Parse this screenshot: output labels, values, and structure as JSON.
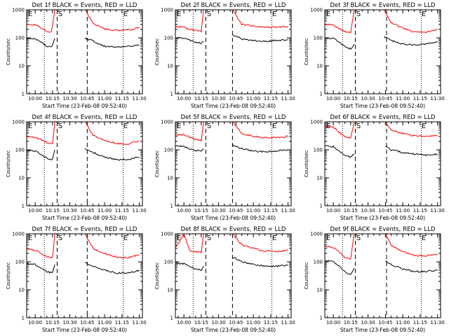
{
  "panel_order": [
    "1f",
    "2f",
    "3f",
    "4f",
    "5f",
    "6f",
    "7f",
    "8f",
    "9f"
  ],
  "colors": {
    "events": "#000000",
    "lld": "#ff0000",
    "axes": "#000000"
  },
  "chart_data": [
    {
      "type": "line",
      "detector": "1f",
      "title": "Det 1f BLACK = Events, RED = LLD",
      "xlabel": "Start Time (23-Feb-08 09:52:40)",
      "ylabel": "Counts/sec",
      "xlim": [
        "09:52:40",
        "11:32:40"
      ],
      "ylim": [
        1,
        1000
      ],
      "yscale": "log",
      "xticks": [
        "10:00",
        "10:15",
        "10:30",
        "10:45",
        "11:00",
        "11:15",
        "11:30"
      ],
      "yticks": [
        "1",
        "10",
        "100",
        "1000"
      ],
      "markers": {
        "E1": "09:52:40",
        "S": "10:18:40",
        "E2": "11:15:00"
      },
      "dotted_lines": [
        "10:08",
        "11:16"
      ],
      "dashed_lines": [
        "10:19",
        "10:45"
      ],
      "gap": [
        "10:19",
        "10:43"
      ],
      "series": [
        {
          "name": "Events",
          "x": [
            "09:53",
            "10:00",
            "10:05",
            "10:10",
            "10:14",
            "10:17",
            "10:43",
            "10:50",
            "10:55",
            "11:00",
            "11:05",
            "11:10",
            "11:15",
            "11:20",
            "11:25",
            "11:30"
          ],
          "values": [
            95,
            90,
            70,
            50,
            45,
            95,
            95,
            80,
            60,
            50,
            47,
            48,
            48,
            50,
            52,
            55
          ]
        },
        {
          "name": "LLD",
          "x": [
            "09:53",
            "10:00",
            "10:05",
            "10:10",
            "10:14",
            "10:17",
            "10:43",
            "10:50",
            "10:55",
            "11:00",
            "11:05",
            "11:10",
            "11:15",
            "11:20",
            "11:25",
            "11:30"
          ],
          "values": [
            300,
            290,
            230,
            170,
            160,
            1000,
            1000,
            320,
            260,
            210,
            190,
            185,
            185,
            190,
            205,
            240
          ]
        }
      ]
    },
    {
      "type": "line",
      "detector": "2f",
      "title": "Det 2f BLACK = Events, RED = LLD",
      "xlabel": "Start Time (23-Feb-08 09:52:40)",
      "ylabel": "Counts/sec",
      "xlim": [
        "09:52:40",
        "11:32:40"
      ],
      "ylim": [
        1,
        1000
      ],
      "yscale": "log",
      "xticks": [
        "10:00",
        "10:15",
        "10:30",
        "10:45",
        "11:00",
        "11:15",
        "11:30"
      ],
      "yticks": [
        "1",
        "10",
        "100",
        "1000"
      ],
      "markers": {
        "E1": "09:52:40",
        "S": "10:18:40",
        "E2": "11:15:00"
      },
      "dotted_lines": [
        "10:08",
        "11:16"
      ],
      "dashed_lines": [
        "10:19",
        "10:42"
      ],
      "gap": [
        "10:19",
        "10:42"
      ],
      "series": [
        {
          "name": "Events",
          "x": [
            "09:53",
            "10:00",
            "10:05",
            "10:10",
            "10:15",
            "10:17",
            "10:42",
            "10:50",
            "11:00",
            "11:10",
            "11:20",
            "11:30"
          ],
          "values": [
            100,
            95,
            80,
            70,
            65,
            75,
            130,
            90,
            80,
            75,
            80,
            85
          ]
        },
        {
          "name": "LLD",
          "x": [
            "09:53",
            "10:00",
            "10:05",
            "10:10",
            "10:15",
            "10:17",
            "10:42",
            "10:50",
            "11:00",
            "11:10",
            "11:20",
            "11:30"
          ],
          "values": [
            250,
            240,
            200,
            180,
            170,
            1000,
            1000,
            300,
            270,
            240,
            240,
            250
          ]
        }
      ]
    },
    {
      "type": "line",
      "detector": "3f",
      "title": "Det 3f BLACK = Events, RED = LLD",
      "xlabel": "Start Time (23-Feb-08 09:52:40)",
      "ylabel": "Counts/sec",
      "xlim": [
        "09:52:40",
        "11:32:40"
      ],
      "ylim": [
        1,
        1000
      ],
      "yscale": "log",
      "xticks": [
        "10:00",
        "10:15",
        "10:30",
        "10:45",
        "11:00",
        "11:15",
        "11:30"
      ],
      "yticks": [
        "1",
        "10",
        "100",
        "1000"
      ],
      "markers": {
        "E1": "09:52:40",
        "S": "10:18:40",
        "E2": "11:15:00"
      },
      "dotted_lines": [
        "10:08",
        "11:16"
      ],
      "dashed_lines": [
        "10:19",
        "10:46"
      ],
      "gap": [
        "10:19",
        "10:44"
      ],
      "series": [
        {
          "name": "Events",
          "x": [
            "09:53",
            "10:00",
            "10:05",
            "10:10",
            "10:15",
            "10:18",
            "10:44",
            "10:50",
            "11:00",
            "11:10",
            "11:20",
            "11:30"
          ],
          "values": [
            100,
            95,
            70,
            50,
            40,
            60,
            110,
            80,
            60,
            55,
            60,
            70
          ]
        },
        {
          "name": "LLD",
          "x": [
            "09:53",
            "10:00",
            "10:05",
            "10:10",
            "10:15",
            "10:18",
            "10:44",
            "10:50",
            "11:00",
            "11:10",
            "11:20",
            "11:30"
          ],
          "values": [
            300,
            280,
            220,
            170,
            150,
            1000,
            1000,
            350,
            220,
            160,
            160,
            200
          ]
        }
      ]
    },
    {
      "type": "line",
      "detector": "4f",
      "title": "Det 4f BLACK = Events, RED = LLD",
      "xlabel": "Start Time (23-Feb-08 09:52:40)",
      "ylabel": "Counts/sec",
      "xlim": [
        "09:52:40",
        "11:32:40"
      ],
      "ylim": [
        1,
        1000
      ],
      "yscale": "log",
      "xticks": [
        "10:00",
        "10:15",
        "10:30",
        "10:45",
        "11:00",
        "11:15",
        "11:30"
      ],
      "yticks": [
        "1",
        "10",
        "100",
        "1000"
      ],
      "markers": {
        "E1": "09:52:40",
        "S": "10:18:40",
        "E2": "11:15:00"
      },
      "dotted_lines": [
        "10:08",
        "11:16"
      ],
      "dashed_lines": [
        "10:19",
        "10:45"
      ],
      "gap": [
        "10:19",
        "10:43"
      ],
      "series": [
        {
          "name": "Events",
          "x": [
            "09:53",
            "10:00",
            "10:05",
            "10:10",
            "10:15",
            "10:17",
            "10:43",
            "10:50",
            "11:00",
            "11:10",
            "11:20",
            "11:30"
          ],
          "values": [
            95,
            90,
            70,
            50,
            45,
            100,
            110,
            80,
            55,
            45,
            45,
            55
          ]
        },
        {
          "name": "LLD",
          "x": [
            "09:53",
            "10:00",
            "10:05",
            "10:10",
            "10:15",
            "10:17",
            "10:43",
            "10:50",
            "11:00",
            "11:10",
            "11:20",
            "11:30"
          ],
          "values": [
            300,
            280,
            230,
            180,
            160,
            1000,
            1000,
            330,
            220,
            170,
            160,
            210
          ]
        }
      ]
    },
    {
      "type": "line",
      "detector": "5f",
      "title": "Det 5f BLACK = Events, RED = LLD",
      "xlabel": "Start Time (23-Feb-08 09:52:40)",
      "ylabel": "Counts/sec",
      "xlim": [
        "09:52:40",
        "11:32:40"
      ],
      "ylim": [
        1,
        1000
      ],
      "yscale": "log",
      "xticks": [
        "10:00",
        "10:15",
        "10:30",
        "10:45",
        "11:00",
        "11:15",
        "11:30"
      ],
      "yticks": [
        "1",
        "10",
        "100",
        "1000"
      ],
      "markers": {
        "E1": "09:52:40",
        "S": "10:18:40",
        "E2": "11:15:00"
      },
      "dotted_lines": [
        "10:08",
        "11:16"
      ],
      "dashed_lines": [
        "10:19",
        "10:42"
      ],
      "gap": [
        "10:19",
        "10:42"
      ],
      "series": [
        {
          "name": "Events",
          "x": [
            "09:53",
            "10:00",
            "10:05",
            "10:10",
            "10:15",
            "10:17",
            "10:42",
            "10:50",
            "11:00",
            "11:10",
            "11:20",
            "11:30"
          ],
          "values": [
            140,
            135,
            110,
            95,
            90,
            110,
            150,
            110,
            90,
            85,
            90,
            100
          ]
        },
        {
          "name": "LLD",
          "x": [
            "09:53",
            "10:00",
            "10:05",
            "10:10",
            "10:15",
            "10:17",
            "10:42",
            "10:50",
            "11:00",
            "11:10",
            "11:20",
            "11:30"
          ],
          "values": [
            350,
            340,
            280,
            230,
            220,
            1000,
            1000,
            380,
            300,
            270,
            270,
            300
          ]
        }
      ]
    },
    {
      "type": "line",
      "detector": "6f",
      "title": "Det 6f BLACK = Events, RED = LLD",
      "xlabel": "Start Time (23-Feb-08 09:52:40)",
      "ylabel": "Counts/sec",
      "xlim": [
        "09:52:40",
        "11:32:40"
      ],
      "ylim": [
        1,
        1000
      ],
      "yscale": "log",
      "xticks": [
        "10:00",
        "10:15",
        "10:30",
        "10:45",
        "11:00",
        "11:15",
        "11:30"
      ],
      "yticks": [
        "1",
        "10",
        "100",
        "1000"
      ],
      "markers": {
        "E1": "09:52:40",
        "S": "10:18:40",
        "E2": "11:15:00"
      },
      "dotted_lines": [
        "10:08",
        "11:16"
      ],
      "dashed_lines": [
        "10:19",
        "10:46"
      ],
      "gap": [
        "10:19",
        "10:45"
      ],
      "series": [
        {
          "name": "Events",
          "x": [
            "09:53",
            "10:00",
            "10:05",
            "10:10",
            "10:15",
            "10:18",
            "10:45",
            "10:50",
            "11:00",
            "11:10",
            "11:20",
            "11:30"
          ],
          "values": [
            140,
            130,
            90,
            65,
            55,
            70,
            130,
            100,
            80,
            70,
            65,
            70
          ]
        },
        {
          "name": "LLD",
          "x": [
            "09:53",
            "10:00",
            "10:05",
            "10:10",
            "10:15",
            "10:18",
            "10:45",
            "10:50",
            "11:00",
            "11:10",
            "11:20",
            "11:30"
          ],
          "values": [
            700,
            650,
            420,
            300,
            260,
            1000,
            1000,
            500,
            380,
            320,
            300,
            330
          ]
        }
      ]
    },
    {
      "type": "line",
      "detector": "7f",
      "title": "Det 7f BLACK = Events, RED = LLD",
      "xlabel": "Start Time (23-Feb-08 09:52:40)",
      "ylabel": "Counts/sec",
      "xlim": [
        "09:52:40",
        "11:32:40"
      ],
      "ylim": [
        1,
        1000
      ],
      "yscale": "log",
      "xticks": [
        "10:00",
        "10:15",
        "10:30",
        "10:45",
        "11:00",
        "11:15",
        "11:30"
      ],
      "yticks": [
        "1",
        "10",
        "100",
        "1000"
      ],
      "markers": {
        "E1": "09:52:40",
        "S": "10:18:40",
        "E2": "11:15:00"
      },
      "dotted_lines": [
        "10:08",
        "11:16"
      ],
      "dashed_lines": [
        "10:19",
        "10:45"
      ],
      "gap": [
        "10:19",
        "10:43"
      ],
      "series": [
        {
          "name": "Events",
          "x": [
            "09:53",
            "10:00",
            "10:05",
            "10:10",
            "10:15",
            "10:17",
            "10:43",
            "10:50",
            "11:00",
            "11:10",
            "11:20",
            "11:30"
          ],
          "values": [
            85,
            80,
            60,
            45,
            40,
            80,
            95,
            70,
            50,
            40,
            40,
            50
          ]
        },
        {
          "name": "LLD",
          "x": [
            "09:53",
            "10:00",
            "10:05",
            "10:10",
            "10:15",
            "10:17",
            "10:43",
            "10:50",
            "11:00",
            "11:10",
            "11:20",
            "11:30"
          ],
          "values": [
            280,
            260,
            200,
            150,
            140,
            1000,
            1000,
            300,
            200,
            150,
            140,
            180
          ]
        }
      ]
    },
    {
      "type": "line",
      "detector": "8f",
      "title": "Det 8f BLACK = Events, RED = LLD",
      "xlabel": "Start Time (23-Feb-08 09:52:40)",
      "ylabel": "Counts/sec",
      "xlim": [
        "09:52:40",
        "11:32:40"
      ],
      "ylim": [
        1,
        1000
      ],
      "yscale": "log",
      "xticks": [
        "10:00",
        "10:15",
        "10:30",
        "10:45",
        "11:00",
        "11:15",
        "11:30"
      ],
      "yticks": [
        "1",
        "10",
        "100",
        "1000"
      ],
      "markers": {
        "E1": "09:52:40",
        "S": "10:18:40",
        "E2": "11:15:00"
      },
      "dotted_lines": [
        "10:08",
        "11:16"
      ],
      "dashed_lines": [
        "10:19",
        "10:42"
      ],
      "gap": [
        "10:19",
        "10:42"
      ],
      "series": [
        {
          "name": "Events",
          "x": [
            "09:53",
            "10:00",
            "10:05",
            "10:10",
            "10:15",
            "10:17",
            "10:42",
            "10:50",
            "11:00",
            "11:10",
            "11:20",
            "11:30"
          ],
          "values": [
            90,
            85,
            70,
            55,
            50,
            70,
            150,
            100,
            80,
            70,
            70,
            75
          ]
        },
        {
          "name": "LLD",
          "x": [
            "09:53",
            "10:00",
            "10:05",
            "10:10",
            "10:15",
            "10:17",
            "10:42",
            "10:50",
            "11:00",
            "11:10",
            "11:20",
            "11:30"
          ],
          "values": [
            320,
            1000,
            250,
            230,
            220,
            1000,
            1000,
            400,
            300,
            240,
            230,
            260
          ]
        }
      ]
    },
    {
      "type": "line",
      "detector": "9f",
      "title": "Det 9f BLACK = Events, RED = LLD",
      "xlabel": "Start Time (23-Feb-08 09:52:40)",
      "ylabel": "Counts/sec",
      "xlim": [
        "09:52:40",
        "11:32:40"
      ],
      "ylim": [
        1,
        1000
      ],
      "yscale": "log",
      "xticks": [
        "10:00",
        "10:15",
        "10:30",
        "10:45",
        "11:00",
        "11:15",
        "11:30"
      ],
      "yticks": [
        "1",
        "10",
        "100",
        "1000"
      ],
      "markers": {
        "E1": "09:52:40",
        "S": "10:18:40",
        "E2": "11:15:00"
      },
      "dotted_lines": [
        "10:08",
        "11:16"
      ],
      "dashed_lines": [
        "10:19",
        "10:46"
      ],
      "gap": [
        "10:19",
        "10:45"
      ],
      "series": [
        {
          "name": "Events",
          "x": [
            "09:53",
            "10:00",
            "10:05",
            "10:10",
            "10:15",
            "10:18",
            "10:45",
            "10:50",
            "11:00",
            "11:10",
            "11:20",
            "11:30"
          ],
          "values": [
            110,
            100,
            70,
            45,
            35,
            60,
            110,
            80,
            55,
            45,
            45,
            50
          ]
        },
        {
          "name": "LLD",
          "x": [
            "09:53",
            "10:00",
            "10:05",
            "10:10",
            "10:15",
            "10:18",
            "10:45",
            "10:50",
            "11:00",
            "11:10",
            "11:20",
            "11:30"
          ],
          "values": [
            350,
            320,
            230,
            140,
            120,
            1000,
            1000,
            380,
            230,
            170,
            160,
            190
          ]
        }
      ]
    }
  ]
}
